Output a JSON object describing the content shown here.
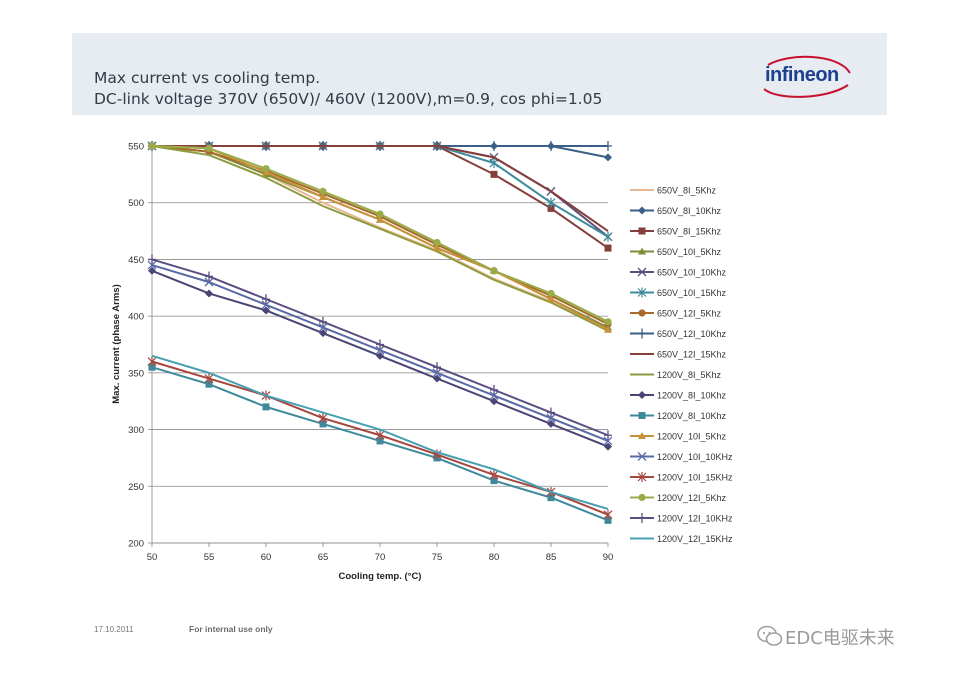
{
  "header": {
    "title_line1": "Max current vs cooling temp.",
    "title_line2": "DC-link voltage 370V (650V)/ 460V (1200V),m=0.9, cos phi=1.05",
    "logo_text": "infineon"
  },
  "footer": {
    "date": "17.10.2011",
    "note": "For internal use only",
    "watermark": "EDC电驱未来"
  },
  "chart_data": {
    "type": "line",
    "title": "",
    "xlabel": "Cooling temp. (°C)",
    "ylabel": "Max. current (phase Arms)",
    "x": [
      50,
      55,
      60,
      65,
      70,
      75,
      80,
      85,
      90
    ],
    "xlim": [
      50,
      90
    ],
    "ylim": [
      200,
      550
    ],
    "yticks": [
      200,
      250,
      300,
      350,
      400,
      450,
      500,
      550
    ],
    "grid": true,
    "legend_position": "right",
    "series": [
      {
        "name": "650V_8I_5Khz",
        "color": "#e7b88f",
        "marker": "none",
        "values": [
          550,
          545,
          525,
          500,
          478,
          458,
          433,
          413,
          388
        ]
      },
      {
        "name": "650V_8I_10Khz",
        "color": "#3b5f86",
        "marker": "diamond",
        "values": [
          550,
          550,
          550,
          550,
          550,
          550,
          550,
          550,
          540
        ]
      },
      {
        "name": "650V_8I_15Khz",
        "color": "#86403c",
        "marker": "square",
        "values": [
          550,
          550,
          550,
          550,
          550,
          550,
          525,
          495,
          460
        ]
      },
      {
        "name": "650V_10I_5Khz",
        "color": "#7c8c3c",
        "marker": "triangle",
        "values": [
          550,
          545,
          525,
          505,
          485,
          460,
          440,
          415,
          390
        ]
      },
      {
        "name": "650V_10I_10Khz",
        "color": "#5e4f7a",
        "marker": "x",
        "values": [
          550,
          550,
          550,
          550,
          550,
          550,
          540,
          510,
          470
        ]
      },
      {
        "name": "650V_10I_15Khz",
        "color": "#3e8a9c",
        "marker": "star",
        "values": [
          550,
          550,
          550,
          550,
          550,
          550,
          535,
          500,
          470
        ]
      },
      {
        "name": "650V_12I_5Khz",
        "color": "#a86a2a",
        "marker": "circle",
        "values": [
          550,
          545,
          528,
          508,
          488,
          463,
          440,
          418,
          393
        ]
      },
      {
        "name": "650V_12I_10Khz",
        "color": "#3b5f86",
        "marker": "plus",
        "values": [
          550,
          550,
          550,
          550,
          550,
          550,
          550,
          550,
          550
        ]
      },
      {
        "name": "650V_12I_15Khz",
        "color": "#86403c",
        "marker": "none",
        "values": [
          550,
          550,
          550,
          550,
          550,
          550,
          540,
          510,
          475
        ]
      },
      {
        "name": "1200V_8I_5Khz",
        "color": "#8d9b3e",
        "marker": "none",
        "values": [
          550,
          542,
          522,
          497,
          477,
          457,
          432,
          412,
          387
        ]
      },
      {
        "name": "1200V_8I_10Khz",
        "color": "#4a4574",
        "marker": "diamond",
        "values": [
          440,
          420,
          405,
          385,
          365,
          345,
          325,
          305,
          285
        ]
      },
      {
        "name": "1200V_8I_10Khz",
        "color": "#3e8a9c",
        "marker": "square",
        "values": [
          355,
          340,
          320,
          305,
          290,
          275,
          255,
          240,
          220
        ]
      },
      {
        "name": "1200V_10I_5Khz",
        "color": "#c9913a",
        "marker": "triangle",
        "values": [
          550,
          548,
          527,
          505,
          485,
          460,
          440,
          415,
          388
        ]
      },
      {
        "name": "1200V_10I_10KHz",
        "color": "#5a6aa6",
        "marker": "x",
        "values": [
          445,
          430,
          410,
          390,
          370,
          350,
          330,
          310,
          290
        ]
      },
      {
        "name": "1200V_10I_15KHz",
        "color": "#a5473f",
        "marker": "star",
        "values": [
          360,
          345,
          330,
          310,
          295,
          278,
          260,
          245,
          225
        ]
      },
      {
        "name": "1200V_12I_5Khz",
        "color": "#9aab4a",
        "marker": "circle",
        "values": [
          550,
          548,
          530,
          510,
          490,
          465,
          440,
          420,
          395
        ]
      },
      {
        "name": "1200V_12I_10KHz",
        "color": "#5a4f82",
        "marker": "plus",
        "values": [
          450,
          435,
          415,
          395,
          375,
          355,
          335,
          315,
          295
        ]
      },
      {
        "name": "1200V_12I_15KHz",
        "color": "#46a0b2",
        "marker": "none",
        "values": [
          365,
          350,
          330,
          315,
          300,
          280,
          265,
          245,
          230
        ]
      }
    ]
  }
}
